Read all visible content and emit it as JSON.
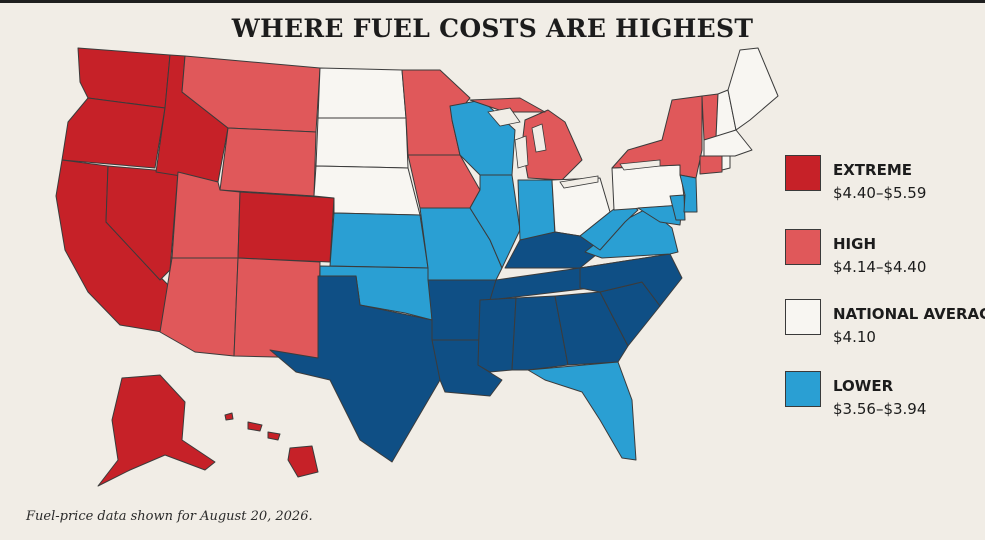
{
  "title": "WHERE FUEL COSTS ARE HIGHEST",
  "footnote": "Fuel-price data shown for August 20, 2026.",
  "colors": {
    "extreme": "#c62128",
    "high": "#e0585a",
    "average": "#f8f6f2",
    "lower": "#2a9fd3",
    "lowest": "#0f4f85"
  },
  "legend": [
    {
      "key": "extreme",
      "label": "EXTREME",
      "range": "$4.40–$5.59"
    },
    {
      "key": "high",
      "label": "HIGH",
      "range": "$4.14–$4.40"
    },
    {
      "key": "average",
      "label": "NATIONAL AVERAGE",
      "range": "$4.10"
    },
    {
      "key": "lower",
      "label": "LOWER",
      "range": "$3.56–$3.94"
    }
  ],
  "states": {
    "WA": "extreme",
    "OR": "extreme",
    "CA": "extreme",
    "NV": "extreme",
    "ID": "extreme",
    "CO": "extreme",
    "AK": "extreme",
    "HI": "extreme",
    "MT": "high",
    "WY": "high",
    "UT": "high",
    "AZ": "high",
    "NM": "high",
    "MN": "high",
    "IA": "high",
    "MI": "high",
    "NY": "high",
    "VT": "high",
    "CT": "high",
    "ND": "average",
    "SD": "average",
    "NE": "average",
    "OH": "average",
    "PA": "average",
    "ME": "average",
    "NH": "average",
    "MA": "average",
    "RI": "average",
    "KS": "lower",
    "OK": "lower",
    "MO": "lower",
    "WI": "lower",
    "IL": "lower",
    "IN": "lower",
    "WV": "lower",
    "VA": "lower",
    "MD": "lower",
    "DE": "lower",
    "NJ": "lower",
    "FL": "lower",
    "TX": "lowest",
    "AR": "lowest",
    "LA": "lowest",
    "MS": "lowest",
    "AL": "lowest",
    "GA": "lowest",
    "SC": "lowest",
    "NC": "lowest",
    "TN": "lowest",
    "KY": "lowest"
  }
}
